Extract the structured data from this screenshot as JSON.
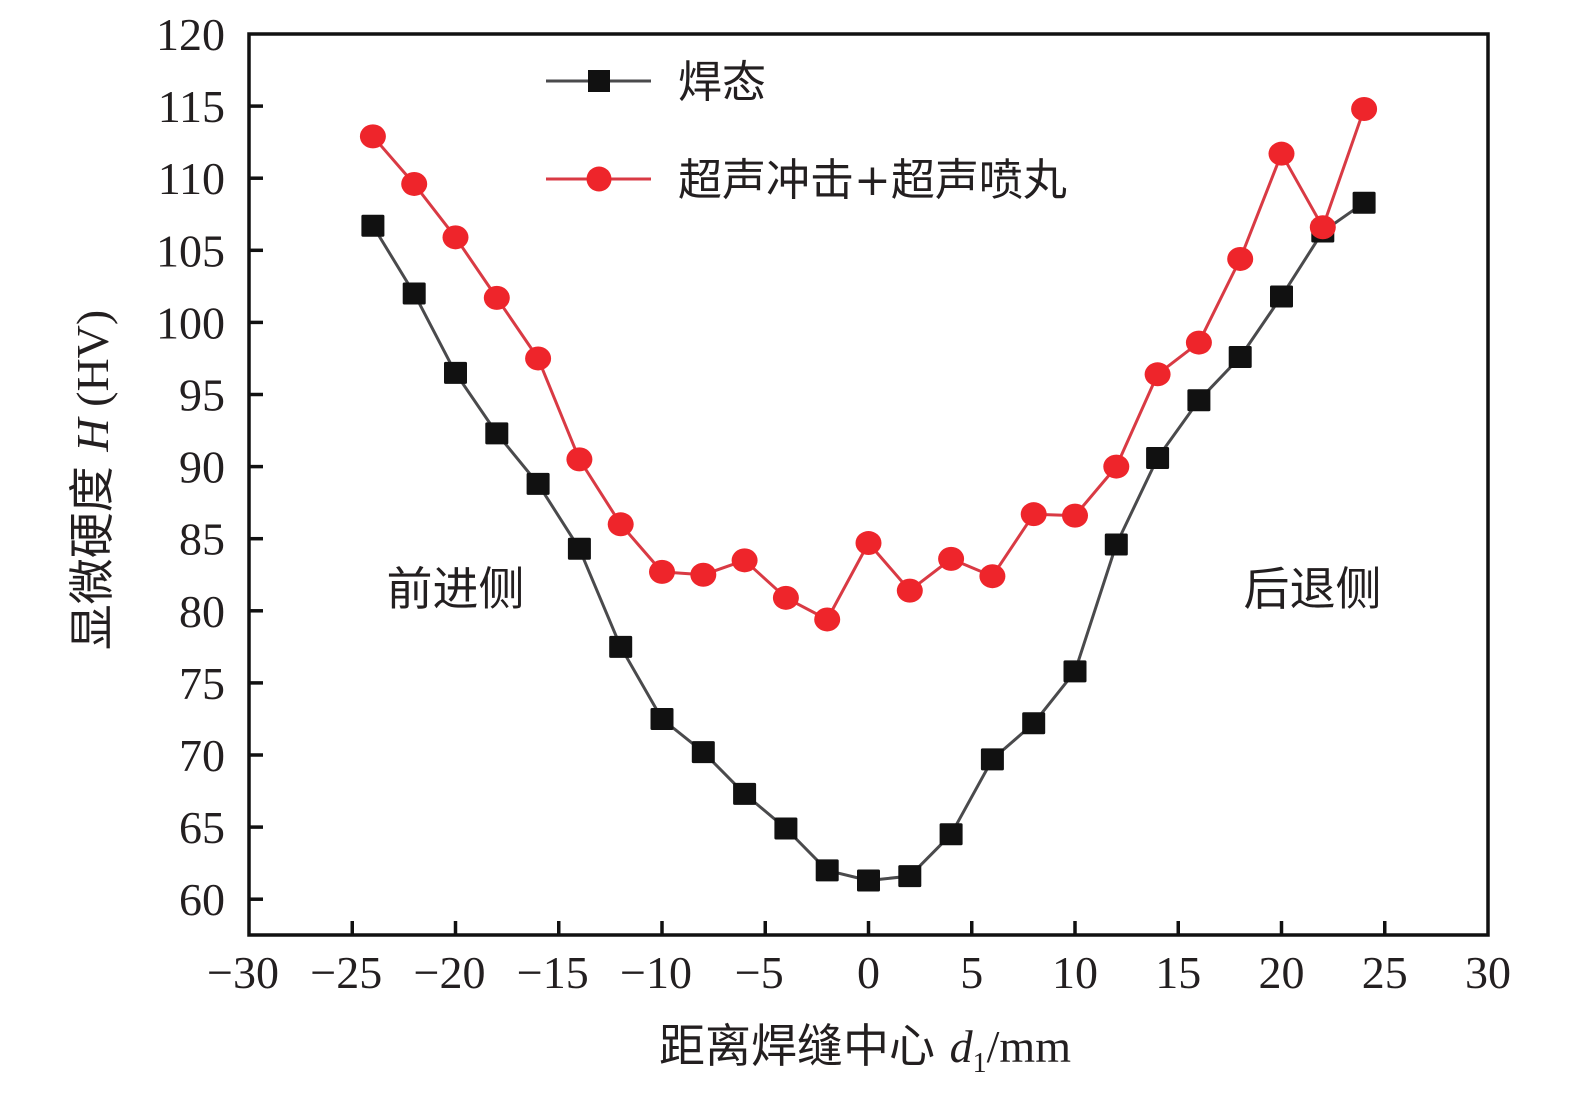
{
  "chart_data": {
    "type": "line",
    "title": "",
    "xlabel_main": "距离焊缝中心 ",
    "xlabel_var": "d",
    "xlabel_sub": "1",
    "xlabel_unit": "/mm",
    "ylabel_main": "显微硬度 ",
    "ylabel_var": "H",
    "ylabel_unit": " (HV)",
    "xlim": [
      -30,
      30
    ],
    "ylim": [
      57.5,
      120
    ],
    "xticks": [
      -30,
      -25,
      -20,
      -15,
      -10,
      -5,
      0,
      5,
      10,
      15,
      20,
      25,
      30
    ],
    "xtick_labels": [
      "−30",
      "−25",
      "−20",
      "−15",
      "−10",
      "−5",
      "0",
      "5",
      "10",
      "15",
      "20",
      "25",
      "30"
    ],
    "yticks": [
      60,
      65,
      70,
      75,
      80,
      85,
      90,
      95,
      100,
      105,
      110,
      115,
      120
    ],
    "ytick_labels": [
      "60",
      "65",
      "70",
      "75",
      "80",
      "85",
      "90",
      "95",
      "100",
      "105",
      "110",
      "115",
      "120"
    ],
    "grid": false,
    "legend_position": "top-center",
    "x": [
      -24,
      -22,
      -20,
      -18,
      -16,
      -14,
      -12,
      -10,
      -8,
      -6,
      -4,
      -2,
      0,
      2,
      4,
      6,
      8,
      10,
      12,
      14,
      16,
      18,
      20,
      22,
      24
    ],
    "series": [
      {
        "name": "焊态",
        "color": "#111111",
        "line_color": "#4a4a4c",
        "marker": "square",
        "values": [
          106.7,
          102.0,
          96.5,
          92.3,
          88.8,
          84.3,
          77.5,
          72.5,
          70.2,
          67.3,
          64.9,
          62.0,
          61.3,
          61.6,
          64.5,
          69.7,
          72.2,
          75.8,
          84.6,
          90.6,
          94.6,
          97.6,
          101.8,
          106.3,
          108.3
        ]
      },
      {
        "name": "超声冲击+超声喷丸",
        "color": "#ee252b",
        "line_color": "#d93a44",
        "marker": "circle",
        "values": [
          112.9,
          109.6,
          105.9,
          101.7,
          97.5,
          90.5,
          86.0,
          82.7,
          82.5,
          83.5,
          80.9,
          79.4,
          84.7,
          81.4,
          83.6,
          82.4,
          86.7,
          86.6,
          90.0,
          96.4,
          98.6,
          104.4,
          111.7,
          106.6,
          114.8
        ]
      }
    ],
    "annotations": [
      {
        "text": "前进侧",
        "x": -20,
        "y": 81.5
      },
      {
        "text": "后退侧",
        "x": 21.5,
        "y": 81.5
      }
    ]
  }
}
